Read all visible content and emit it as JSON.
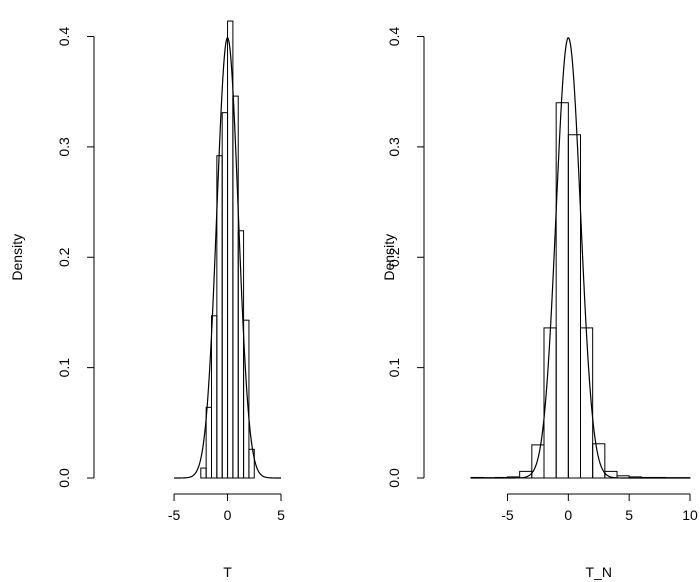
{
  "chart_data": [
    {
      "type": "histogram",
      "xlabel": "T",
      "ylabel": "Density",
      "xlim": [
        -8,
        5
      ],
      "ylim": [
        0,
        0.41
      ],
      "xticks": [
        -5,
        0,
        5
      ],
      "yticks": [
        0.0,
        0.1,
        0.2,
        0.3,
        0.4
      ],
      "xtick_labels": [
        "-5",
        "0",
        "5"
      ],
      "ytick_labels": [
        "0.0",
        "0.1",
        "0.2",
        "0.3",
        "0.4"
      ],
      "bin_width": 0.5,
      "bins": [
        {
          "x0": -2.5,
          "x1": -2.0,
          "density": 0.009
        },
        {
          "x0": -2.0,
          "x1": -1.5,
          "density": 0.064
        },
        {
          "x0": -1.5,
          "x1": -1.0,
          "density": 0.147
        },
        {
          "x0": -1.0,
          "x1": -0.5,
          "density": 0.292
        },
        {
          "x0": -0.5,
          "x1": 0.0,
          "density": 0.331
        },
        {
          "x0": 0.0,
          "x1": 0.5,
          "density": 0.414
        },
        {
          "x0": 0.5,
          "x1": 1.0,
          "density": 0.346
        },
        {
          "x0": 1.0,
          "x1": 1.5,
          "density": 0.224
        },
        {
          "x0": 1.5,
          "x1": 2.0,
          "density": 0.143
        },
        {
          "x0": 2.0,
          "x1": 2.5,
          "density": 0.026
        }
      ],
      "overlay": {
        "type": "normal_density",
        "mean": 0,
        "sd": 1,
        "x_range": [
          -5,
          5
        ]
      },
      "grid": false
    },
    {
      "type": "histogram",
      "xlabel": "T_N",
      "ylabel": "Density",
      "xlim": [
        -8,
        10
      ],
      "ylim": [
        0,
        0.41
      ],
      "xticks": [
        -5,
        0,
        5,
        10
      ],
      "yticks": [
        0.0,
        0.1,
        0.2,
        0.3,
        0.4
      ],
      "xtick_labels": [
        "-5",
        "0",
        "5",
        "10"
      ],
      "ytick_labels": [
        "0.0",
        "0.1",
        "0.2",
        "0.3",
        "0.4"
      ],
      "bin_width": 1,
      "bins": [
        {
          "x0": -8,
          "x1": -7,
          "density": 0.0005
        },
        {
          "x0": -7,
          "x1": -6,
          "density": 0.0003
        },
        {
          "x0": -6,
          "x1": -5,
          "density": 0.0005
        },
        {
          "x0": -5,
          "x1": -4,
          "density": 0.001
        },
        {
          "x0": -4,
          "x1": -3,
          "density": 0.006
        },
        {
          "x0": -3,
          "x1": -2,
          "density": 0.03
        },
        {
          "x0": -2,
          "x1": -1,
          "density": 0.136
        },
        {
          "x0": -1,
          "x1": 0,
          "density": 0.34
        },
        {
          "x0": 0,
          "x1": 1,
          "density": 0.311
        },
        {
          "x0": 1,
          "x1": 2,
          "density": 0.136
        },
        {
          "x0": 2,
          "x1": 3,
          "density": 0.031
        },
        {
          "x0": 3,
          "x1": 4,
          "density": 0.006
        },
        {
          "x0": 4,
          "x1": 5,
          "density": 0.002
        },
        {
          "x0": 5,
          "x1": 6,
          "density": 0.001
        },
        {
          "x0": 6,
          "x1": 7,
          "density": 0.0005
        },
        {
          "x0": 7,
          "x1": 8,
          "density": 0.0005
        },
        {
          "x0": 8,
          "x1": 9,
          "density": 0.0003
        },
        {
          "x0": 9,
          "x1": 10,
          "density": 0.0003
        }
      ],
      "overlay": {
        "type": "normal_density",
        "mean": 0,
        "sd": 1,
        "x_range": [
          -8,
          10
        ]
      },
      "grid": false
    }
  ]
}
